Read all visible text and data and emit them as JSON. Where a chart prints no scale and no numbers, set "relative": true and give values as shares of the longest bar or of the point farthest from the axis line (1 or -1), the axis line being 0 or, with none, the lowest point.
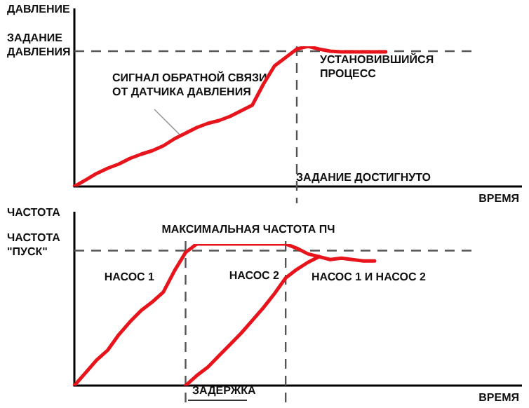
{
  "chart_data": [
    {
      "type": "line",
      "relative": true,
      "marker": "none",
      "line_style": "solid",
      "ylabel": "ДАВЛЕНИЕ",
      "xlabel": "ВРЕМЯ",
      "categories": [
        null,
        null,
        null,
        null,
        null,
        null,
        null,
        null,
        null,
        null,
        null,
        null,
        null,
        null,
        null,
        null,
        null,
        null,
        null,
        null,
        null,
        null,
        null,
        null,
        null,
        null,
        null,
        null,
        null,
        null,
        null,
        null,
        null,
        null,
        null,
        null,
        null,
        null,
        null,
        null,
        null
      ],
      "series": [
        {
          "color": "#e8141b",
          "values": [
            0,
            0.046,
            0.093,
            0.13,
            0.16,
            0.2,
            0.23,
            0.255,
            0.29,
            0.34,
            0.38,
            0.42,
            0.45,
            0.47,
            0.5,
            0.54,
            0.58,
            0.73,
            0.86,
            0.92,
            0.98,
            1,
            0.98,
            0.965,
            0.96,
            0.96,
            0.96,
            0.96,
            0.96,
            null,
            null,
            null,
            null,
            null,
            null,
            null,
            null,
            null,
            null,
            null,
            null
          ]
        }
      ],
      "ref_lines": [
        {
          "axis": "y",
          "value": 0.965,
          "label": "ЗАДАНИЕ\nДАВЛЕНИЯ",
          "color": "#555555",
          "line_style": "dashed"
        }
      ],
      "annotations": [
        "СИГНАЛ ОБРАТНОЙ СВЯЗИ\nОТ ДАТЧИКА ДАВЛЕНИЯ",
        "УСТАНОВИВШИЙСЯ\nПРОЦЕСС",
        "ЗАДАНИЕ ДОСТИГНУТО"
      ]
    },
    {
      "type": "line",
      "relative": true,
      "marker": "none",
      "line_style": "solid",
      "ylabel": "ЧАСТОТА",
      "xlabel": "ВРЕМЯ",
      "categories": [
        null,
        null,
        null,
        null,
        null,
        null,
        null,
        null,
        null,
        null,
        null,
        null,
        null,
        null,
        null,
        null,
        null,
        null,
        null,
        null,
        null,
        null,
        null,
        null,
        null,
        null,
        null,
        null,
        null,
        null,
        null,
        null,
        null,
        null,
        null,
        null,
        null,
        null,
        null,
        null,
        null
      ],
      "series": [
        {
          "name": "НАСОС 1",
          "color": "#e8141b",
          "values": [
            0,
            0.09,
            0.18,
            0.25,
            0.36,
            0.45,
            0.53,
            0.59,
            0.66,
            0.81,
            0.94,
            1,
            1,
            1,
            1,
            1,
            1,
            1,
            1,
            1,
            0.97,
            0.93,
            0.91,
            0.89,
            0.9,
            0.89,
            0.88,
            0.88,
            null,
            null,
            null,
            null,
            null,
            null,
            null,
            null,
            null,
            null,
            null,
            null,
            null
          ]
        },
        {
          "name": "НАСОС 2",
          "color": "#e8141b",
          "values": [
            null,
            null,
            null,
            null,
            null,
            null,
            null,
            null,
            null,
            null,
            0,
            0.07,
            0.13,
            0.21,
            0.29,
            0.37,
            0.46,
            0.55,
            0.65,
            0.76,
            0.82,
            0.87,
            0.91,
            null,
            null,
            null,
            null,
            null,
            null,
            null,
            null,
            null,
            null,
            null,
            null,
            null,
            null,
            null,
            null,
            null,
            null
          ]
        }
      ],
      "ref_lines": [
        {
          "axis": "y",
          "value": 0.953,
          "label": "ЧАСТОТА\n\"ПУСК\"",
          "color": "#555555",
          "line_style": "dashed"
        }
      ],
      "annotations": [
        "МАКСИМАЛЬНАЯ ЧАСТОТА ПЧ",
        "НАСОС 1 И НАСОС 2",
        "ЗАДЕРЖКА"
      ]
    }
  ]
}
